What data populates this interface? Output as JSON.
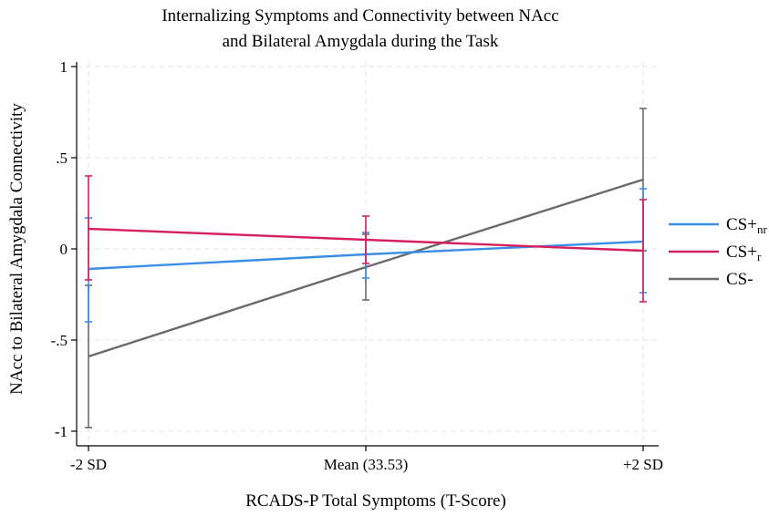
{
  "chart_data": {
    "type": "line",
    "title_line1": "Internalizing Symptoms and Connectivity between NAcc",
    "title_line2": "and Bilateral Amygdala during the Task",
    "xlabel": "RCADS-P Total Symptoms (T-Score)",
    "ylabel": "NAcc to Bilateral Amygdala Connectivity",
    "categories": [
      "-2 SD",
      "Mean (33.53)",
      "+2 SD"
    ],
    "ylim": [
      -1,
      1
    ],
    "yticks": [
      {
        "value": 1,
        "label": "1"
      },
      {
        "value": 0.5,
        "label": ".5"
      },
      {
        "value": 0,
        "label": "0"
      },
      {
        "value": -0.5,
        "label": "-.5"
      },
      {
        "value": -1,
        "label": "-1"
      }
    ],
    "grid": true,
    "legend_position": "right",
    "series": [
      {
        "name": "CS+",
        "name_sub": "nr",
        "color": "#3a8ee6",
        "values": [
          -0.11,
          -0.03,
          0.04
        ],
        "ci_low": [
          -0.4,
          -0.16,
          -0.24
        ],
        "ci_high": [
          0.17,
          0.09,
          0.33
        ]
      },
      {
        "name": "CS+",
        "name_sub": "r",
        "color": "#d6215a",
        "values": [
          0.11,
          0.05,
          -0.01
        ],
        "ci_low": [
          -0.17,
          -0.08,
          -0.29
        ],
        "ci_high": [
          0.4,
          0.18,
          0.27
        ]
      },
      {
        "name": "CS-",
        "name_sub": "",
        "color": "#6a6a6a",
        "values": [
          -0.59,
          -0.1,
          0.38
        ],
        "ci_low": [
          -0.98,
          -0.28,
          -0.01
        ],
        "ci_high": [
          -0.2,
          0.08,
          0.77
        ]
      }
    ]
  }
}
